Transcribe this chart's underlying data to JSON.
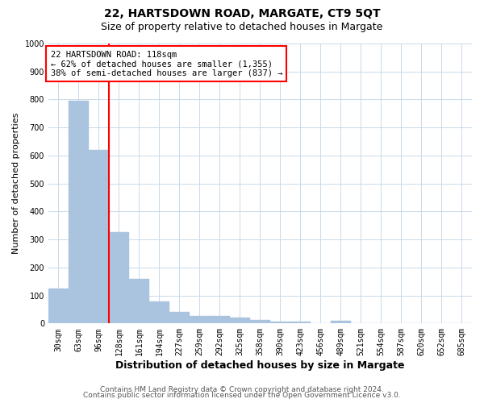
{
  "title": "22, HARTSDOWN ROAD, MARGATE, CT9 5QT",
  "subtitle": "Size of property relative to detached houses in Margate",
  "xlabel": "Distribution of detached houses by size in Margate",
  "ylabel": "Number of detached properties",
  "footnote1": "Contains HM Land Registry data © Crown copyright and database right 2024.",
  "footnote2": "Contains public sector information licensed under the Open Government Licence v3.0.",
  "categories": [
    "30sqm",
    "63sqm",
    "96sqm",
    "128sqm",
    "161sqm",
    "194sqm",
    "227sqm",
    "259sqm",
    "292sqm",
    "325sqm",
    "358sqm",
    "390sqm",
    "423sqm",
    "456sqm",
    "489sqm",
    "521sqm",
    "554sqm",
    "587sqm",
    "620sqm",
    "652sqm",
    "685sqm"
  ],
  "values": [
    125,
    795,
    620,
    325,
    160,
    78,
    40,
    28,
    26,
    20,
    13,
    8,
    8,
    0,
    9,
    0,
    0,
    0,
    0,
    0,
    0
  ],
  "bar_color": "#aac4e0",
  "bar_edgecolor": "#aac4e0",
  "vline_x": 2.5,
  "vline_color": "red",
  "annotation_line1": "22 HARTSDOWN ROAD: 118sqm",
  "annotation_line2": "← 62% of detached houses are smaller (1,355)",
  "annotation_line3": "38% of semi-detached houses are larger (837) →",
  "annotation_box_color": "white",
  "annotation_box_edgecolor": "red",
  "ylim": [
    0,
    1000
  ],
  "yticks": [
    0,
    100,
    200,
    300,
    400,
    500,
    600,
    700,
    800,
    900,
    1000
  ],
  "grid_color": "#c8daea",
  "bg_color": "white",
  "title_fontsize": 10,
  "subtitle_fontsize": 9,
  "xlabel_fontsize": 9,
  "ylabel_fontsize": 8,
  "tick_fontsize": 7,
  "annotation_fontsize": 7.5,
  "footnote_fontsize": 6.5
}
